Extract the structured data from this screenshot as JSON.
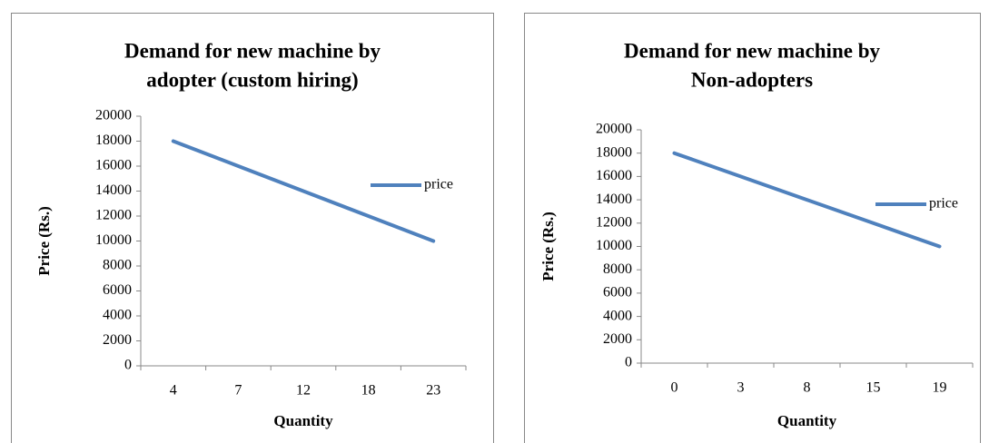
{
  "chart_data": [
    {
      "type": "line",
      "title": [
        "Demand for new machine by",
        "adopter (custom hiring)"
      ],
      "x_label": "Quantity",
      "y_label": "Price (Rs.)",
      "categories": [
        "4",
        "7",
        "12",
        "18",
        "23"
      ],
      "series": [
        {
          "name": "price",
          "color": "#4f81bd",
          "values": [
            18000,
            16000,
            14000,
            12000,
            10000
          ]
        }
      ],
      "ylim": [
        0,
        20000
      ],
      "yticks": [
        0,
        2000,
        4000,
        6000,
        8000,
        10000,
        12000,
        14000,
        16000,
        18000,
        20000
      ],
      "legend": "right"
    },
    {
      "type": "line",
      "title": [
        "Demand for new machine by",
        "Non-adopters"
      ],
      "x_label": "Quantity",
      "y_label": "Price (Rs.)",
      "categories": [
        "0",
        "3",
        "8",
        "15",
        "19"
      ],
      "series": [
        {
          "name": "price",
          "color": "#4f81bd",
          "values": [
            18000,
            16000,
            14000,
            12000,
            10000
          ]
        }
      ],
      "ylim": [
        0,
        20000
      ],
      "yticks": [
        0,
        2000,
        4000,
        6000,
        8000,
        10000,
        12000,
        14000,
        16000,
        18000,
        20000
      ],
      "legend": "right"
    }
  ]
}
